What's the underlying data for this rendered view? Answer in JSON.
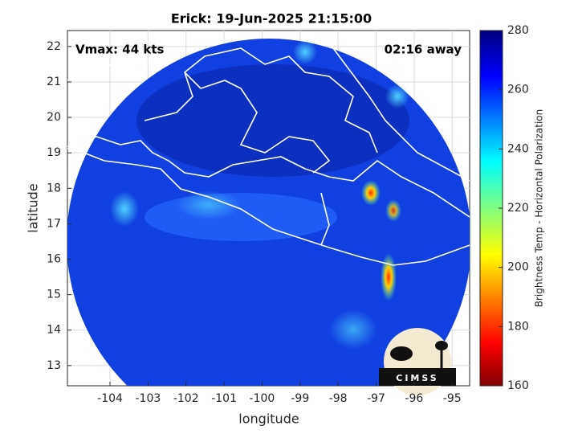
{
  "chart_data": {
    "type": "image",
    "title": "Erick: 19-Jun-2025 21:15:00",
    "annotations": [
      "Vmax: 44 kts",
      "02:16 away"
    ],
    "x_label": "longitude",
    "y_label": "latitude",
    "xlim": [
      -105.12,
      -94.54
    ],
    "xticks": [
      -104,
      -103,
      -102,
      -101,
      -100,
      -99,
      -98,
      -97,
      -96,
      -95
    ],
    "ylim": [
      12.43,
      22.45
    ],
    "yticks": [
      13,
      14,
      15,
      16,
      17,
      18,
      19,
      20,
      21,
      22
    ],
    "grid": true,
    "colorbar": {
      "label": "Brightness Temp - Horizontal Polarization",
      "lim": [
        160,
        280
      ],
      "ticks": [
        160,
        180,
        200,
        220,
        240,
        260,
        280
      ]
    },
    "logo": "CIMSS"
  }
}
